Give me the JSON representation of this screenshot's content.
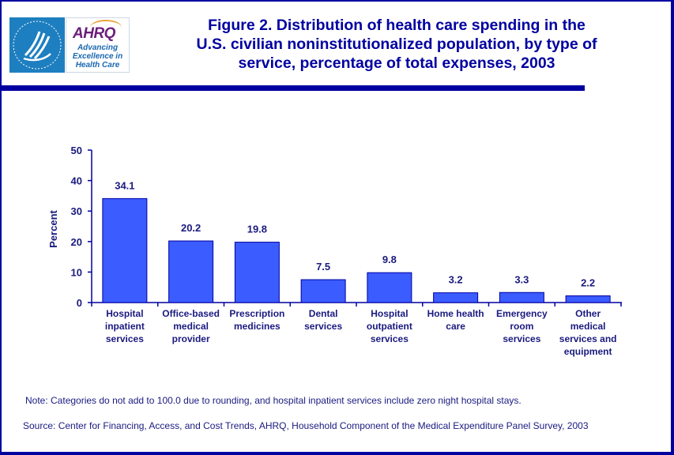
{
  "header": {
    "logo_hhs_alt": "Department of Health & Human Services USA",
    "logo_ahrq_word": "AHRQ",
    "logo_ahrq_tagline": [
      "Advancing",
      "Excellence in",
      "Health Care"
    ],
    "title_lines": [
      "Figure 2. Distribution of health care spending in the",
      "U.S. civilian noninstitutionalized population, by type of",
      "service, percentage of total expenses, 2003"
    ]
  },
  "colors": {
    "frame": "#0000a0",
    "bar_fill": "#3b5cff",
    "bar_edge": "#0000a0",
    "text": "#1a1a80"
  },
  "chart_data": {
    "type": "bar",
    "title": "Figure 2. Distribution of health care spending in the U.S. civilian noninstitutionalized population, by type of service, percentage of total expenses, 2003",
    "xlabel": "",
    "ylabel": "Percent",
    "ylim": [
      0,
      50
    ],
    "yticks": [
      0,
      10,
      20,
      30,
      40,
      50
    ],
    "grid": false,
    "legend": "none",
    "categories": [
      [
        "Hospital",
        "inpatient",
        "services"
      ],
      [
        "Office-based",
        "medical",
        "provider"
      ],
      [
        "Prescription",
        "medicines"
      ],
      [
        "Dental",
        "services"
      ],
      [
        "Hospital",
        "outpatient",
        "services"
      ],
      [
        "Home health",
        "care"
      ],
      [
        "Emergency",
        "room",
        "services"
      ],
      [
        "Other",
        "medical",
        "services and",
        "equipment"
      ]
    ],
    "values": [
      34.1,
      20.2,
      19.8,
      7.5,
      9.8,
      3.2,
      3.3,
      2.2
    ],
    "data_labels": [
      "34.1",
      "20.2",
      "19.8",
      "7.5",
      "9.8",
      "3.2",
      "3.3",
      "2.2"
    ]
  },
  "footer": {
    "note": "Note: Categories do not add to 100.0 due to rounding, and hospital inpatient services include zero night hospital stays.",
    "source": "Source: Center for Financing, Access, and Cost Trends, AHRQ, Household Component of the Medical Expenditure Panel Survey, 2003"
  }
}
